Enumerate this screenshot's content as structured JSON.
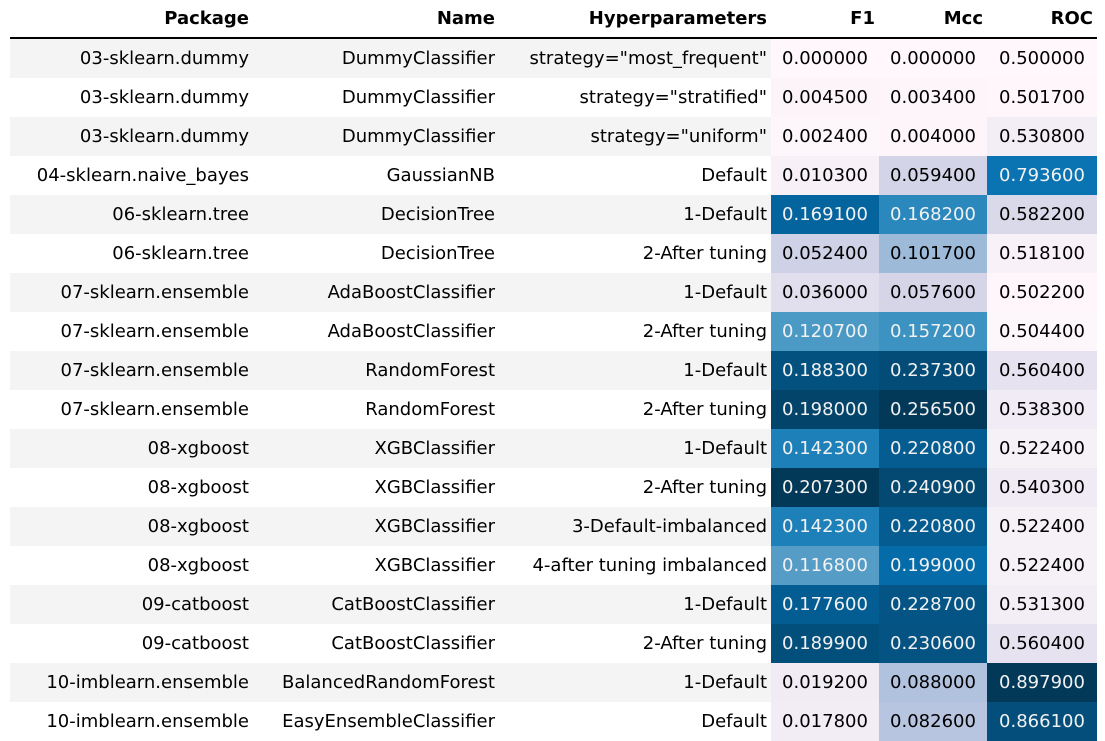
{
  "table": {
    "headers": [
      "Package",
      "Name",
      "Hyperparameters",
      "F1",
      "Mcc",
      "ROC"
    ],
    "rows": [
      {
        "package": "03-sklearn.dummy",
        "name": "DummyClassifier",
        "hyperparameters": "strategy=\"most_frequent\"",
        "f1": "0.000000",
        "mcc": "0.000000",
        "roc": "0.500000"
      },
      {
        "package": "03-sklearn.dummy",
        "name": "DummyClassifier",
        "hyperparameters": "strategy=\"stratified\"",
        "f1": "0.004500",
        "mcc": "0.003400",
        "roc": "0.501700"
      },
      {
        "package": "03-sklearn.dummy",
        "name": "DummyClassifier",
        "hyperparameters": "strategy=\"uniform\"",
        "f1": "0.002400",
        "mcc": "0.004000",
        "roc": "0.530800"
      },
      {
        "package": "04-sklearn.naive_bayes",
        "name": "GaussianNB",
        "hyperparameters": "Default",
        "f1": "0.010300",
        "mcc": "0.059400",
        "roc": "0.793600"
      },
      {
        "package": "06-sklearn.tree",
        "name": "DecisionTree",
        "hyperparameters": "1-Default",
        "f1": "0.169100",
        "mcc": "0.168200",
        "roc": "0.582200"
      },
      {
        "package": "06-sklearn.tree",
        "name": "DecisionTree",
        "hyperparameters": "2-After tuning",
        "f1": "0.052400",
        "mcc": "0.101700",
        "roc": "0.518100"
      },
      {
        "package": "07-sklearn.ensemble",
        "name": "AdaBoostClassifier",
        "hyperparameters": "1-Default",
        "f1": "0.036000",
        "mcc": "0.057600",
        "roc": "0.502200"
      },
      {
        "package": "07-sklearn.ensemble",
        "name": "AdaBoostClassifier",
        "hyperparameters": "2-After tuning",
        "f1": "0.120700",
        "mcc": "0.157200",
        "roc": "0.504400"
      },
      {
        "package": "07-sklearn.ensemble",
        "name": "RandomForest",
        "hyperparameters": "1-Default",
        "f1": "0.188300",
        "mcc": "0.237300",
        "roc": "0.560400"
      },
      {
        "package": "07-sklearn.ensemble",
        "name": "RandomForest",
        "hyperparameters": "2-After tuning",
        "f1": "0.198000",
        "mcc": "0.256500",
        "roc": "0.538300"
      },
      {
        "package": "08-xgboost",
        "name": "XGBClassifier",
        "hyperparameters": "1-Default",
        "f1": "0.142300",
        "mcc": "0.220800",
        "roc": "0.522400"
      },
      {
        "package": "08-xgboost",
        "name": "XGBClassifier",
        "hyperparameters": "2-After tuning",
        "f1": "0.207300",
        "mcc": "0.240900",
        "roc": "0.540300"
      },
      {
        "package": "08-xgboost",
        "name": "XGBClassifier",
        "hyperparameters": "3-Default-imbalanced",
        "f1": "0.142300",
        "mcc": "0.220800",
        "roc": "0.522400"
      },
      {
        "package": "08-xgboost",
        "name": "XGBClassifier",
        "hyperparameters": "4-after tuning imbalanced",
        "f1": "0.116800",
        "mcc": "0.199000",
        "roc": "0.522400"
      },
      {
        "package": "09-catboost",
        "name": "CatBoostClassifier",
        "hyperparameters": "1-Default",
        "f1": "0.177600",
        "mcc": "0.228700",
        "roc": "0.531300"
      },
      {
        "package": "09-catboost",
        "name": "CatBoostClassifier",
        "hyperparameters": "2-After tuning",
        "f1": "0.189900",
        "mcc": "0.230600",
        "roc": "0.560400"
      },
      {
        "package": "10-imblearn.ensemble",
        "name": "BalancedRandomForest",
        "hyperparameters": "1-Default",
        "f1": "0.019200",
        "mcc": "0.088000",
        "roc": "0.897900"
      },
      {
        "package": "10-imblearn.ensemble",
        "name": "EasyEnsembleClassifier",
        "hyperparameters": "Default",
        "f1": "0.017800",
        "mcc": "0.082600",
        "roc": "0.866100"
      }
    ]
  },
  "colormap": {
    "name": "PuBu",
    "stops": [
      "#fff7fb",
      "#ece7f2",
      "#d0d1e6",
      "#a6bddb",
      "#74a9cf",
      "#3690c0",
      "#0570b0",
      "#045a8d",
      "#023858"
    ],
    "text_light": "#f1f1f1",
    "text_dark": "#000000"
  }
}
